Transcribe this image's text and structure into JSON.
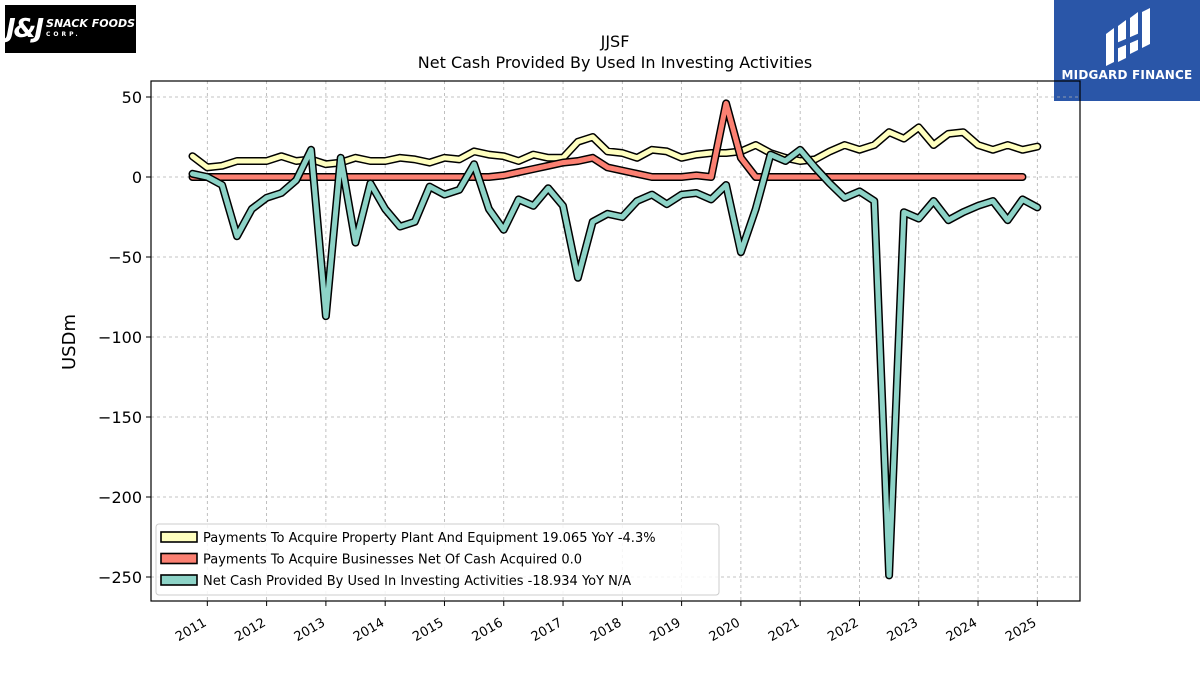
{
  "logos": {
    "left": {
      "text": "J&J SNACK FOODS CORP.",
      "mark": "J&J",
      "sub": "SNACK FOODS",
      "sub2": "CORP."
    },
    "right": {
      "text": "MIDGARD FINANCE"
    }
  },
  "chart_data": {
    "type": "line",
    "title": "JJSF",
    "subtitle": "Net Cash Provided By Used In Investing Activities",
    "xlabel": "",
    "ylabel": "USDm",
    "xlim": [
      2010.05,
      2025.72
    ],
    "ylim": [
      -265,
      60
    ],
    "grid": true,
    "legend_position": "lower-left",
    "x_ticks": [
      "2011",
      "2012",
      "2013",
      "2014",
      "2015",
      "2016",
      "2017",
      "2018",
      "2019",
      "2020",
      "2021",
      "2022",
      "2023",
      "2024",
      "2025"
    ],
    "y_ticks": [
      50,
      0,
      -50,
      -100,
      -150,
      -200,
      -250
    ],
    "y_tick_labels": [
      "50",
      "0",
      "−50",
      "−100",
      "−150",
      "−200",
      "−250"
    ],
    "series": [
      {
        "name": "Payments To Acquire Property Plant And Equipment",
        "legend_label": "Payments To Acquire Property Plant And Equipment  19.065 YoY -4.3%",
        "color": "#ffffbf",
        "x": [
          2010.75,
          2011.0,
          2011.25,
          2011.5,
          2011.75,
          2012.0,
          2012.25,
          2012.5,
          2012.75,
          2013.0,
          2013.25,
          2013.5,
          2013.75,
          2014.0,
          2014.25,
          2014.5,
          2014.75,
          2015.0,
          2015.25,
          2015.5,
          2015.75,
          2016.0,
          2016.25,
          2016.5,
          2016.75,
          2017.0,
          2017.25,
          2017.5,
          2017.75,
          2018.0,
          2018.25,
          2018.5,
          2018.75,
          2019.0,
          2019.25,
          2019.5,
          2019.75,
          2020.0,
          2020.25,
          2020.5,
          2020.75,
          2021.0,
          2021.25,
          2021.5,
          2021.75,
          2022.0,
          2022.25,
          2022.5,
          2022.75,
          2023.0,
          2023.25,
          2023.5,
          2023.75,
          2024.0,
          2024.25,
          2024.5,
          2024.75,
          2025.0
        ],
        "y": [
          13,
          6,
          7,
          10,
          10,
          10,
          13,
          10,
          11,
          8,
          9,
          12,
          10,
          10,
          12,
          11,
          9,
          12,
          11,
          16,
          14,
          13,
          10,
          14,
          12,
          12,
          22,
          25,
          16,
          15,
          12,
          17,
          16,
          12,
          14,
          15,
          15,
          16,
          20,
          15,
          12,
          10,
          11,
          16,
          20,
          17,
          20,
          28,
          24,
          31,
          20,
          27,
          28,
          20,
          17,
          20,
          17,
          19
        ]
      },
      {
        "name": "Payments To Acquire Businesses Net Of Cash Acquired",
        "legend_label": "Payments To Acquire Businesses Net Of Cash Acquired  0.0",
        "color": "#fb8072",
        "x": [
          2010.75,
          2011.0,
          2011.25,
          2011.5,
          2011.75,
          2012.0,
          2012.25,
          2012.5,
          2012.75,
          2013.0,
          2013.25,
          2013.5,
          2013.75,
          2014.0,
          2014.25,
          2014.5,
          2014.75,
          2015.0,
          2015.25,
          2015.5,
          2015.75,
          2016.0,
          2016.25,
          2016.5,
          2016.75,
          2017.0,
          2017.25,
          2017.5,
          2017.75,
          2018.0,
          2018.25,
          2018.5,
          2018.75,
          2019.0,
          2019.25,
          2019.5,
          2019.75,
          2020.0,
          2020.25,
          2020.5,
          2020.75,
          2021.0,
          2021.25,
          2021.5,
          2021.75,
          2022.0,
          2022.25,
          2022.5,
          2022.75,
          2023.0,
          2023.25,
          2023.5,
          2023.75,
          2024.0,
          2024.25,
          2024.5,
          2024.75
        ],
        "y": [
          0,
          0,
          0,
          0,
          0,
          0,
          0,
          0,
          0,
          0,
          0,
          0,
          0,
          0,
          0,
          0,
          0,
          0,
          0,
          0,
          0,
          1,
          3,
          5,
          7,
          9,
          10,
          12,
          6,
          4,
          2,
          0,
          0,
          0,
          1,
          0,
          46,
          12,
          0,
          0,
          0,
          0,
          0,
          0,
          0,
          0,
          0,
          0,
          0,
          0,
          0,
          0,
          0,
          0,
          0,
          0,
          0
        ]
      },
      {
        "name": "Net Cash Provided By Used In Investing Activities",
        "legend_label": "Net Cash Provided By Used In Investing Activities  -18.934 YoY N/A",
        "color": "#8dd3c7",
        "x": [
          2010.75,
          2011.0,
          2011.25,
          2011.5,
          2011.75,
          2012.0,
          2012.25,
          2012.5,
          2012.75,
          2013.0,
          2013.25,
          2013.5,
          2013.75,
          2014.0,
          2014.25,
          2014.5,
          2014.75,
          2015.0,
          2015.25,
          2015.5,
          2015.75,
          2016.0,
          2016.25,
          2016.5,
          2016.75,
          2017.0,
          2017.25,
          2017.5,
          2017.75,
          2018.0,
          2018.25,
          2018.5,
          2018.75,
          2019.0,
          2019.25,
          2019.5,
          2019.75,
          2020.0,
          2020.25,
          2020.5,
          2020.75,
          2021.0,
          2021.25,
          2021.5,
          2021.75,
          2022.0,
          2022.25,
          2022.5,
          2022.75,
          2023.0,
          2023.25,
          2023.5,
          2023.75,
          2024.0,
          2024.25,
          2024.5,
          2024.75,
          2025.0
        ],
        "y": [
          2,
          0,
          -5,
          -37,
          -20,
          -13,
          -10,
          -2,
          17,
          -87,
          12,
          -41,
          -4,
          -20,
          -31,
          -28,
          -6,
          -11,
          -8,
          8,
          -20,
          -33,
          -14,
          -18,
          -7,
          -18,
          -63,
          -28,
          -23,
          -25,
          -15,
          -11,
          -17,
          -11,
          -10,
          -14,
          -5,
          -47,
          -20,
          14,
          10,
          17,
          6,
          -4,
          -13,
          -9,
          -15,
          -249,
          -22,
          -26,
          -15,
          -27,
          -22,
          -18,
          -15,
          -27,
          -14,
          -19
        ]
      }
    ]
  }
}
